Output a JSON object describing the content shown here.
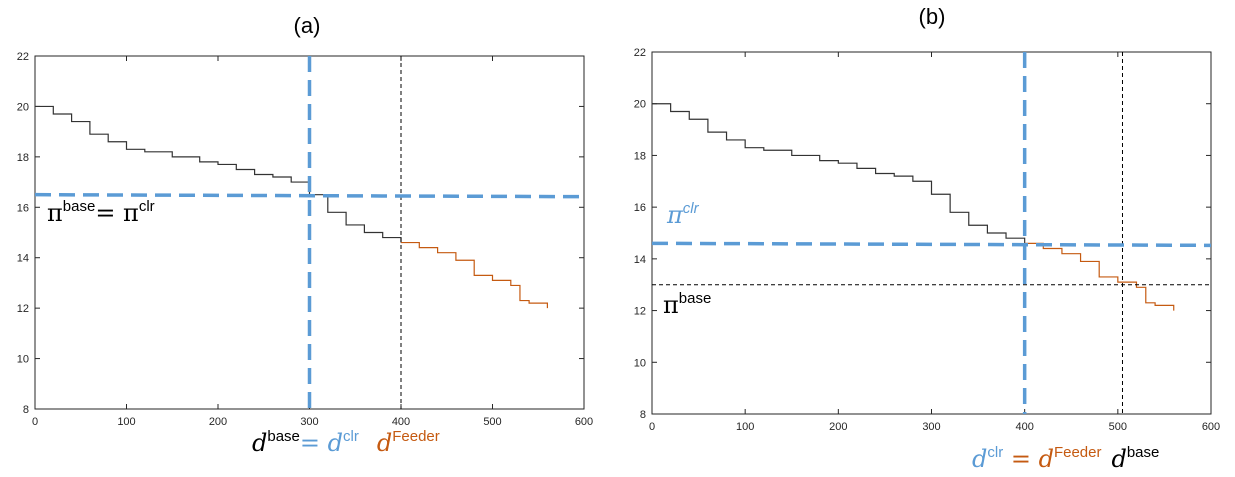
{
  "colors": {
    "blue": "#5b9bd5",
    "black": "#000000",
    "orange": "#c55a11",
    "curve_black": "#333333"
  },
  "chart_data": [
    {
      "type": "line",
      "title": "(a)",
      "xlim": [
        0,
        600
      ],
      "ylim": [
        8,
        22
      ],
      "xticks": [
        0,
        100,
        200,
        300,
        400,
        500,
        600
      ],
      "yticks": [
        8,
        10,
        12,
        14,
        16,
        18,
        20,
        22
      ],
      "grid": false,
      "series": [
        {
          "color": "#333333",
          "x": [
            0,
            20,
            40,
            60,
            80,
            100,
            120,
            150,
            180,
            200,
            220,
            240,
            260,
            280,
            300,
            320,
            340,
            360,
            380,
            400
          ],
          "y": [
            20.0,
            19.7,
            19.4,
            18.9,
            18.6,
            18.3,
            18.2,
            18.0,
            17.8,
            17.7,
            17.5,
            17.3,
            17.2,
            17.0,
            16.5,
            15.8,
            15.3,
            15.0,
            14.8,
            14.6
          ],
          "step": true
        },
        {
          "color": "#c55a11",
          "x": [
            400,
            420,
            440,
            460,
            480,
            500,
            520,
            530,
            540,
            560
          ],
          "y": [
            14.6,
            14.4,
            14.2,
            13.9,
            13.3,
            13.1,
            12.9,
            12.3,
            12.2,
            12.0
          ],
          "step": true
        }
      ],
      "reference_lines": {
        "hline_blue": 16.5,
        "vline_blue": 300,
        "vline_black": 400
      },
      "annotations": [
        {
          "id": "a_pi",
          "text_main": "π",
          "sup": "base",
          "text_eq": "= π",
          "sup2": "clr"
        },
        {
          "id": "a_d",
          "text_main": "d",
          "sup": "base",
          "text_eq": "= d",
          "sup2": "clr",
          "text3": "d",
          "sup3": "Feeder"
        }
      ]
    },
    {
      "type": "line",
      "title": "(b)",
      "xlim": [
        0,
        600
      ],
      "ylim": [
        8,
        22
      ],
      "xticks": [
        0,
        100,
        200,
        300,
        400,
        500,
        600
      ],
      "yticks": [
        8,
        10,
        12,
        14,
        16,
        18,
        20,
        22
      ],
      "grid": false,
      "series": [
        {
          "color": "#333333",
          "x": [
            0,
            20,
            40,
            60,
            80,
            100,
            120,
            150,
            180,
            200,
            220,
            240,
            260,
            280,
            300,
            320,
            340,
            360,
            380,
            400
          ],
          "y": [
            20.0,
            19.7,
            19.4,
            18.9,
            18.6,
            18.3,
            18.2,
            18.0,
            17.8,
            17.7,
            17.5,
            17.3,
            17.2,
            17.0,
            16.5,
            15.8,
            15.3,
            15.0,
            14.8,
            14.6
          ],
          "step": true
        },
        {
          "color": "#c55a11",
          "x": [
            400,
            420,
            440,
            460,
            480,
            500,
            520,
            530,
            540,
            560
          ],
          "y": [
            14.6,
            14.4,
            14.2,
            13.9,
            13.3,
            13.1,
            12.9,
            12.3,
            12.2,
            12.0
          ],
          "step": true
        }
      ],
      "reference_lines": {
        "hline_blue": 14.6,
        "hline_black": 13.0,
        "vline_blue": 400,
        "vline_black": 505
      },
      "annotations": [
        {
          "id": "b_piclr",
          "text_main": "π",
          "sup": "clr"
        },
        {
          "id": "b_pibase",
          "text_main": "π",
          "sup": "base"
        },
        {
          "id": "b_d",
          "text_main": "d",
          "sup": "clr",
          "text_eq": " = d",
          "sup2": "Feeder",
          "text3": "d",
          "sup3": "base"
        }
      ]
    }
  ]
}
